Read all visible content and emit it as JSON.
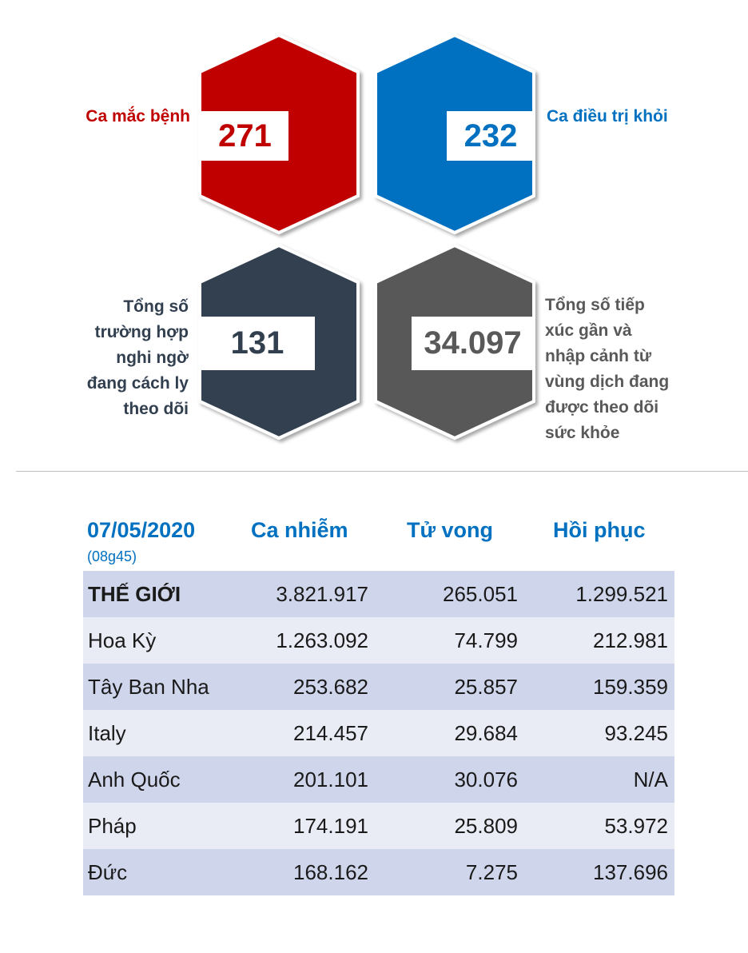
{
  "tiles": [
    {
      "number": "271",
      "label_lines": [
        "Ca mắc bệnh"
      ],
      "color": "#c00000"
    },
    {
      "number": "232",
      "label_lines": [
        "Ca điều trị khỏi"
      ],
      "color": "#0070c0"
    },
    {
      "number": "131",
      "label_lines": [
        "Tổng số",
        "trường hợp",
        "nghi ngờ",
        "đang cách ly",
        "theo dõi"
      ],
      "color": "#323f4f"
    },
    {
      "number": "34.097",
      "label_lines": [
        "Tổng số tiếp",
        "xúc gần và",
        "nhập cảnh từ",
        "vùng dịch đang",
        "được theo dõi",
        "sức khỏe"
      ],
      "color": "#595959"
    }
  ],
  "table": {
    "date": "07/05/2020",
    "time": "(08g45)",
    "headers": [
      "Ca nhiễm",
      "Tử vong",
      "Hồi phục"
    ],
    "rows": [
      {
        "name": "THẾ GIỚI",
        "cases": "3.821.917",
        "deaths": "265.051",
        "recovered": "1.299.521"
      },
      {
        "name": "Hoa Kỳ",
        "cases": "1.263.092",
        "deaths": "74.799",
        "recovered": "212.981"
      },
      {
        "name": "Tây Ban Nha",
        "cases": "253.682",
        "deaths": "25.857",
        "recovered": "159.359"
      },
      {
        "name": "Italy",
        "cases": "214.457",
        "deaths": "29.684",
        "recovered": "93.245"
      },
      {
        "name": "Anh Quốc",
        "cases": "201.101",
        "deaths": "30.076",
        "recovered": "N/A"
      },
      {
        "name": "Pháp",
        "cases": "174.191",
        "deaths": "25.809",
        "recovered": "53.972"
      },
      {
        "name": "Đức",
        "cases": "168.162",
        "deaths": "7.275",
        "recovered": "137.696"
      }
    ]
  }
}
